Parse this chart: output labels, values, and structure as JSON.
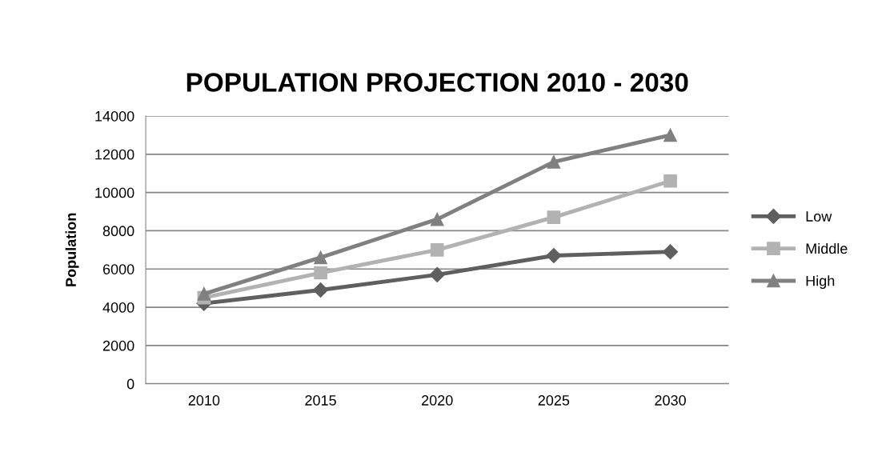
{
  "chart_data": {
    "type": "line",
    "title": "POPULATION PROJECTION 2010 - 2030",
    "ylabel": "Population",
    "categories": [
      "2010",
      "2015",
      "2020",
      "2025",
      "2030"
    ],
    "series": [
      {
        "name": "Low",
        "color": "#5f5f5f",
        "marker": "diamond",
        "values": [
          4200,
          4900,
          5700,
          6700,
          6900
        ]
      },
      {
        "name": "Middle",
        "color": "#b2b2b2",
        "marker": "square",
        "values": [
          4500,
          5800,
          7000,
          8700,
          10600
        ]
      },
      {
        "name": "High",
        "color": "#808080",
        "marker": "triangle",
        "values": [
          4700,
          6600,
          8600,
          11600,
          13000
        ]
      }
    ],
    "ylim": [
      0,
      14000
    ],
    "yticks": [
      0,
      2000,
      4000,
      6000,
      8000,
      10000,
      12000,
      14000
    ],
    "grid": "y",
    "legend": "right",
    "line_style": "solid"
  }
}
